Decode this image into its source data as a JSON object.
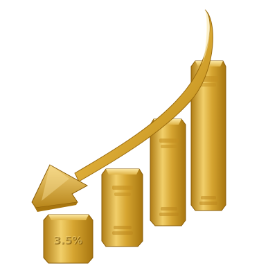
{
  "scene": {
    "bars": [
      {
        "label": "3.5%",
        "top_text": "",
        "bottom_text": ""
      },
      {
        "label": "",
        "top_text": "",
        "bottom_text": ""
      },
      {
        "label": "",
        "top_text": "",
        "bottom_text": ""
      },
      {
        "label": "",
        "top_text": "",
        "bottom_text": ""
      }
    ]
  },
  "colors": {
    "gold_light": "#f6d77a",
    "gold_mid": "#d9a62b",
    "gold_dark": "#9a6a0c",
    "gold_edge": "#7a5206",
    "background": "#ffffff"
  }
}
